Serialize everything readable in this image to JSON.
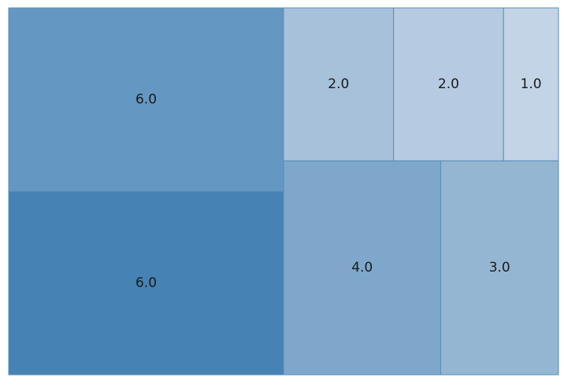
{
  "chart_data": {
    "type": "treemap",
    "title": "",
    "values": [
      6.0,
      6.0,
      4.0,
      3.0,
      2.0,
      2.0,
      1.0
    ],
    "labels": [
      "6.0",
      "6.0",
      "4.0",
      "3.0",
      "2.0",
      "2.0",
      "1.0"
    ],
    "colors": [
      "#4682b4",
      "#6497c1",
      "#7ea7cb",
      "#95b6d2",
      "#a8c1db",
      "#b6cbe1",
      "#c3d4e7"
    ],
    "grid": false,
    "axes_visible": false,
    "legend": "none"
  }
}
